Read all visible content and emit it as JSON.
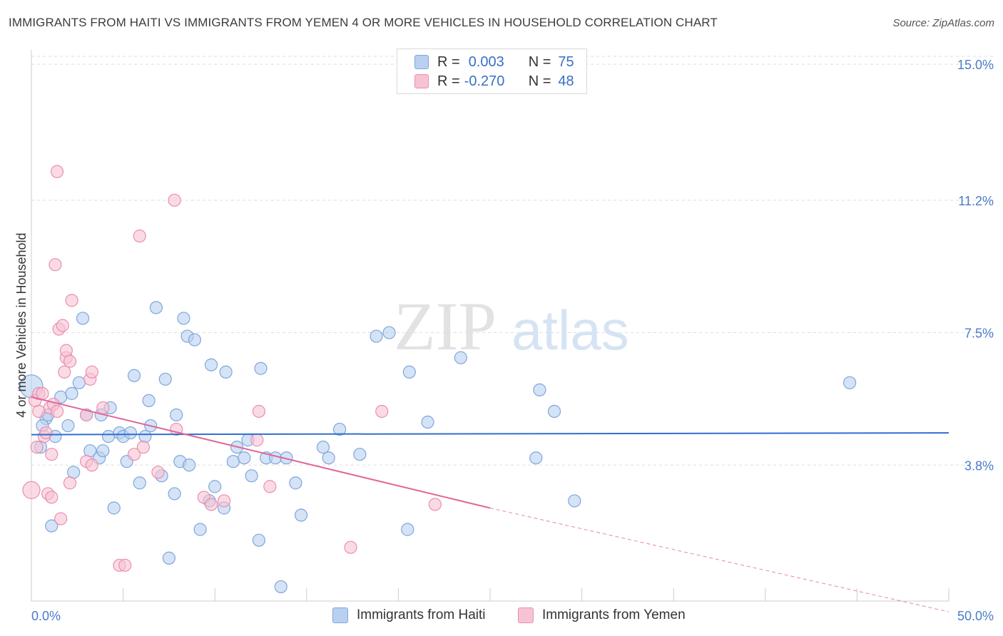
{
  "title": "IMMIGRANTS FROM HAITI VS IMMIGRANTS FROM YEMEN 4 OR MORE VEHICLES IN HOUSEHOLD CORRELATION CHART",
  "source": "Source: ZipAtlas.com",
  "watermark": {
    "zip": "ZIP",
    "atlas": "atlas"
  },
  "legend": {
    "haiti": {
      "r_label": "R =",
      "r_value": "0.003",
      "n_label": "N =",
      "n_value": "75"
    },
    "yemen": {
      "r_label": "R =",
      "r_value": "-0.270",
      "n_label": "N =",
      "n_value": "48"
    }
  },
  "bottom_legend": {
    "haiti": "Immigrants from Haiti",
    "yemen": "Immigrants from Yemen"
  },
  "colors": {
    "haiti_fill": "#b9d0f0",
    "haiti_stroke": "#7fa6dc",
    "haiti_line": "#2f6fcf",
    "yemen_fill": "#f7c3d3",
    "yemen_stroke": "#e98fae",
    "yemen_line": "#e0679a",
    "grid": "#dddddd",
    "tick_text": "#4a7cc7"
  },
  "chart_data": {
    "type": "scatter",
    "title": "IMMIGRANTS FROM HAITI VS IMMIGRANTS FROM YEMEN 4 OR MORE VEHICLES IN HOUSEHOLD CORRELATION CHART",
    "xlabel": "",
    "ylabel": "4 or more Vehicles in Household",
    "xlim": [
      0,
      50
    ],
    "ylim": [
      0,
      15.4
    ],
    "x_tick_labels": [
      "0.0%",
      "50.0%"
    ],
    "y_ticks": [
      3.8,
      7.5,
      11.2,
      15.0
    ],
    "y_tick_labels": [
      "3.8%",
      "7.5%",
      "11.2%",
      "15.0%"
    ],
    "grid": true,
    "legend_position": "top-center",
    "series": [
      {
        "name": "Immigrants from Haiti",
        "R": 0.003,
        "N": 75,
        "trend": {
          "x": [
            0,
            50
          ],
          "y": [
            4.65,
            4.7
          ]
        },
        "points": [
          [
            0.0,
            6.0
          ],
          [
            0.5,
            4.3
          ],
          [
            0.8,
            5.1
          ],
          [
            0.9,
            5.2
          ],
          [
            0.6,
            4.9
          ],
          [
            1.3,
            4.6
          ],
          [
            1.6,
            5.7
          ],
          [
            2.0,
            4.9
          ],
          [
            2.2,
            5.8
          ],
          [
            2.6,
            6.1
          ],
          [
            2.8,
            7.9
          ],
          [
            2.3,
            3.6
          ],
          [
            3.0,
            5.2
          ],
          [
            3.2,
            4.2
          ],
          [
            3.8,
            5.2
          ],
          [
            3.7,
            4.0
          ],
          [
            3.9,
            4.2
          ],
          [
            4.2,
            4.6
          ],
          [
            4.3,
            5.4
          ],
          [
            4.5,
            2.6
          ],
          [
            4.8,
            4.7
          ],
          [
            5.0,
            4.6
          ],
          [
            5.2,
            3.9
          ],
          [
            5.4,
            4.7
          ],
          [
            5.6,
            6.3
          ],
          [
            5.9,
            3.3
          ],
          [
            6.2,
            4.6
          ],
          [
            6.4,
            5.6
          ],
          [
            6.5,
            4.9
          ],
          [
            6.8,
            8.2
          ],
          [
            7.1,
            3.5
          ],
          [
            7.3,
            6.2
          ],
          [
            7.5,
            1.2
          ],
          [
            7.8,
            3.0
          ],
          [
            7.9,
            5.2
          ],
          [
            8.1,
            3.9
          ],
          [
            8.3,
            7.9
          ],
          [
            8.5,
            7.4
          ],
          [
            8.6,
            3.8
          ],
          [
            8.9,
            7.3
          ],
          [
            9.2,
            2.0
          ],
          [
            9.7,
            2.8
          ],
          [
            9.8,
            6.6
          ],
          [
            10.0,
            3.2
          ],
          [
            10.5,
            2.6
          ],
          [
            10.6,
            6.4
          ],
          [
            11.0,
            3.9
          ],
          [
            11.2,
            4.3
          ],
          [
            11.6,
            4.0
          ],
          [
            11.8,
            4.5
          ],
          [
            12.0,
            3.5
          ],
          [
            12.4,
            1.7
          ],
          [
            12.5,
            6.5
          ],
          [
            12.8,
            4.0
          ],
          [
            13.3,
            4.0
          ],
          [
            13.6,
            0.4
          ],
          [
            13.9,
            4.0
          ],
          [
            14.4,
            3.3
          ],
          [
            14.7,
            2.4
          ],
          [
            15.9,
            4.3
          ],
          [
            16.2,
            4.0
          ],
          [
            16.8,
            4.8
          ],
          [
            17.9,
            4.1
          ],
          [
            18.8,
            7.4
          ],
          [
            19.5,
            7.5
          ],
          [
            20.5,
            2.0
          ],
          [
            20.6,
            6.4
          ],
          [
            21.6,
            5.0
          ],
          [
            23.4,
            6.8
          ],
          [
            27.5,
            4.0
          ],
          [
            27.7,
            5.9
          ],
          [
            28.5,
            5.3
          ],
          [
            29.6,
            2.8
          ],
          [
            44.6,
            6.1
          ],
          [
            1.1,
            2.1
          ]
        ]
      },
      {
        "name": "Immigrants from Yemen",
        "R": -0.27,
        "N": 48,
        "trend": {
          "x": [
            0,
            25
          ],
          "y": [
            5.7,
            2.6
          ]
        },
        "trend_dashed": {
          "x": [
            25,
            50
          ],
          "y": [
            2.6,
            -0.3
          ]
        },
        "points": [
          [
            0.0,
            3.1
          ],
          [
            0.2,
            5.6
          ],
          [
            0.3,
            4.3
          ],
          [
            0.4,
            5.8
          ],
          [
            0.6,
            5.8
          ],
          [
            0.7,
            4.6
          ],
          [
            0.8,
            4.7
          ],
          [
            0.9,
            3.0
          ],
          [
            1.0,
            5.4
          ],
          [
            1.1,
            4.1
          ],
          [
            1.1,
            2.9
          ],
          [
            1.2,
            5.5
          ],
          [
            1.4,
            5.3
          ],
          [
            1.4,
            12.0
          ],
          [
            1.3,
            9.4
          ],
          [
            1.5,
            7.6
          ],
          [
            1.6,
            2.3
          ],
          [
            1.7,
            7.7
          ],
          [
            1.8,
            6.4
          ],
          [
            1.9,
            6.8
          ],
          [
            1.9,
            7.0
          ],
          [
            2.1,
            3.3
          ],
          [
            2.2,
            8.4
          ],
          [
            2.1,
            6.7
          ],
          [
            3.0,
            3.9
          ],
          [
            3.0,
            5.2
          ],
          [
            3.2,
            6.2
          ],
          [
            3.3,
            6.4
          ],
          [
            3.3,
            3.8
          ],
          [
            3.9,
            5.4
          ],
          [
            4.8,
            1.0
          ],
          [
            5.1,
            1.0
          ],
          [
            5.6,
            4.1
          ],
          [
            5.9,
            10.2
          ],
          [
            6.1,
            4.3
          ],
          [
            6.9,
            3.6
          ],
          [
            7.8,
            11.2
          ],
          [
            7.9,
            4.8
          ],
          [
            9.4,
            2.9
          ],
          [
            9.8,
            2.7
          ],
          [
            10.5,
            2.8
          ],
          [
            12.3,
            4.5
          ],
          [
            12.4,
            5.3
          ],
          [
            13.0,
            3.2
          ],
          [
            17.4,
            1.5
          ],
          [
            19.1,
            5.3
          ],
          [
            22.0,
            2.7
          ],
          [
            0.4,
            5.3
          ]
        ]
      }
    ]
  }
}
